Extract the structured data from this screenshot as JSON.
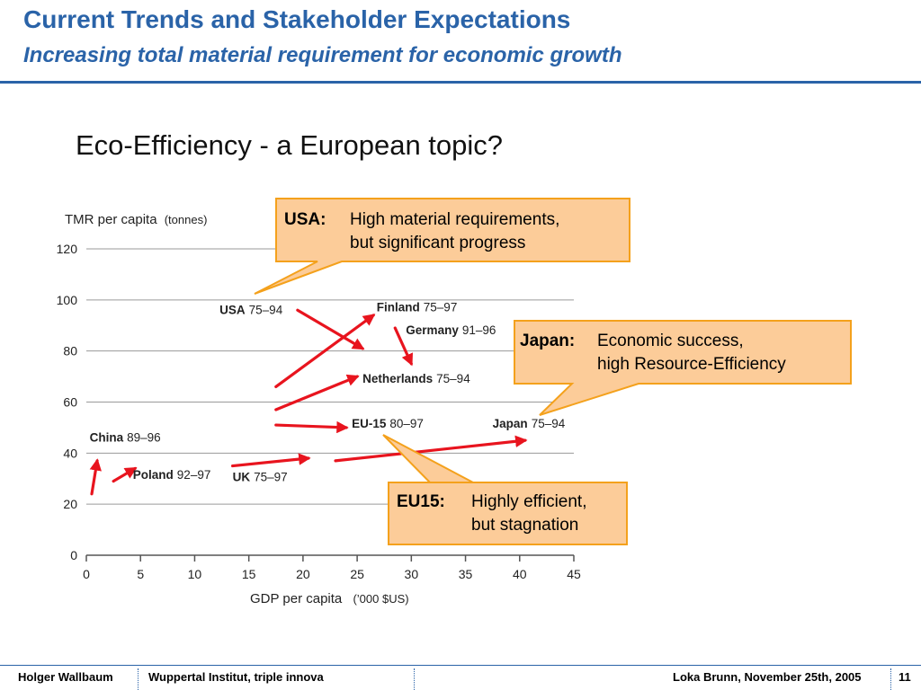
{
  "slide": {
    "title": "Current Trends and Stakeholder Expectations",
    "subtitle": "Increasing total material requirement for economic growth",
    "topic": "Eco-Efficiency - a European topic?"
  },
  "chart_data": {
    "type": "line",
    "ylabel": "TMR per capita",
    "ylabel_unit": "(tonnes)",
    "xlabel": "GDP per capita",
    "xlabel_unit": "(’000 $US)",
    "xlim": [
      0,
      45
    ],
    "ylim": [
      0,
      120
    ],
    "xticks": [
      0,
      5,
      10,
      15,
      20,
      25,
      30,
      35,
      40,
      45
    ],
    "yticks": [
      0,
      20,
      40,
      60,
      80,
      100,
      120
    ],
    "grid": "horizontal",
    "arrow_color": "#e8141e",
    "series": [
      {
        "name": "USA",
        "period": "75–94",
        "x": [
          19.5,
          25.5
        ],
        "y": [
          96,
          81
        ]
      },
      {
        "name": "Finland",
        "period": "75–97",
        "x": [
          17.5,
          26.5
        ],
        "y": [
          66,
          94
        ]
      },
      {
        "name": "Germany",
        "period": "91–96",
        "x": [
          28.5,
          30
        ],
        "y": [
          89,
          75
        ]
      },
      {
        "name": "Netherlands",
        "period": "75–94",
        "x": [
          17.5,
          25
        ],
        "y": [
          57,
          70
        ]
      },
      {
        "name": "EU-15",
        "period": "80–97",
        "x": [
          17.5,
          24
        ],
        "y": [
          51,
          50
        ]
      },
      {
        "name": "Japan",
        "period": "75–94",
        "x": [
          23,
          40.5
        ],
        "y": [
          37,
          45
        ]
      },
      {
        "name": "China",
        "period": "89–96",
        "x": [
          0.5,
          1
        ],
        "y": [
          24,
          37
        ]
      },
      {
        "name": "Poland",
        "period": "92–97",
        "x": [
          2.5,
          4.5
        ],
        "y": [
          29,
          34
        ]
      },
      {
        "name": "UK",
        "period": "75–97",
        "x": [
          13.5,
          20.5
        ],
        "y": [
          35,
          38
        ]
      }
    ],
    "labels": [
      {
        "name": "USA",
        "period": "75–94",
        "x": 12.3,
        "y": 94.5
      },
      {
        "name": "Finland",
        "period": "75–97",
        "x": 26.8,
        "y": 95.5
      },
      {
        "name": "Germany",
        "period": "91–96",
        "x": 29.5,
        "y": 86.5
      },
      {
        "name": "Netherlands",
        "period": "75–94",
        "x": 25.5,
        "y": 67.5
      },
      {
        "name": "EU-15",
        "period": "80–97",
        "x": 24.5,
        "y": 50
      },
      {
        "name": "Japan",
        "period": "75–94",
        "x": 37.5,
        "y": 50
      },
      {
        "name": "China",
        "period": "89–96",
        "x": 0.3,
        "y": 44.5
      },
      {
        "name": "Poland",
        "period": "92–97",
        "x": 4.3,
        "y": 30
      },
      {
        "name": "UK",
        "period": "75–97",
        "x": 13.5,
        "y": 29
      }
    ]
  },
  "callouts": {
    "usa": {
      "key": "USA:",
      "line1": "High material requirements,",
      "line2": "but significant progress"
    },
    "japan": {
      "key": "Japan:",
      "line1": "Economic success,",
      "line2": "high Resource-Efficiency"
    },
    "eu15": {
      "key": "EU15:",
      "line1": "Highly efficient,",
      "line2": "but stagnation"
    },
    "fill": "#fccc99",
    "border": "#f4a11c"
  },
  "footer": {
    "author": "Holger Wallbaum",
    "org": "Wuppertal Institut, triple innova",
    "presenter": "Loka Brunn, November 25th, 2005",
    "page": "11"
  }
}
